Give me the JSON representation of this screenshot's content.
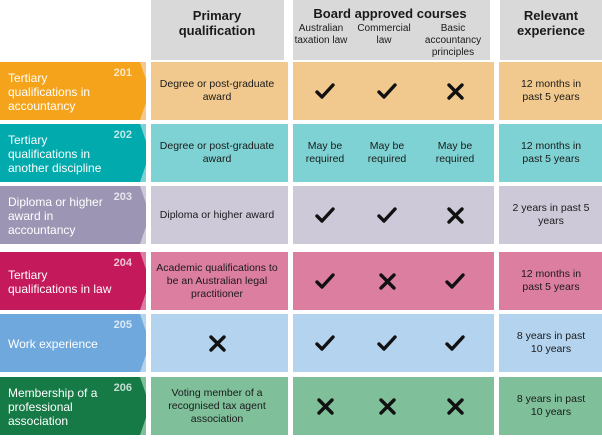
{
  "headers": {
    "primary": "Primary qualification",
    "board": "Board approved courses",
    "board_cols": [
      "Australian taxation law",
      "Commercial law",
      "Basic accountancy principles"
    ],
    "experience": "Relevant experience"
  },
  "rows": [
    {
      "num": "201",
      "label": "Tertiary qualifications in accountancy",
      "primary": "Degree or post-graduate award",
      "courses": [
        "check",
        "check",
        "cross"
      ],
      "experience": "12 months in past 5 years",
      "label_color": "#f5a31a",
      "row_color": "#f1c98e"
    },
    {
      "num": "202",
      "label": "Tertiary qualifications in another discipline",
      "primary": "Degree or post-graduate award",
      "courses": [
        "May be required",
        "May be required",
        "May be required"
      ],
      "experience": "12 months in past 5 years",
      "label_color": "#00aaad",
      "row_color": "#7fd2d3"
    },
    {
      "num": "203",
      "label": "Diploma or higher award in accountancy",
      "primary": "Diploma or higher award",
      "courses": [
        "check",
        "check",
        "cross"
      ],
      "experience": "2 years in past 5 years",
      "label_color": "#9c96b4",
      "row_color": "#cdc9d9"
    },
    {
      "num": "204",
      "label": "Tertiary qualifications in law",
      "primary": "Academic qualifications to be an Australian legal practitioner",
      "courses": [
        "check",
        "cross",
        "check"
      ],
      "experience": "12 months in past 5 years",
      "label_color": "#c4195a",
      "row_color": "#dc7ea0"
    },
    {
      "num": "205",
      "label": "Work experience",
      "primary": "cross",
      "courses": [
        "check",
        "check",
        "check"
      ],
      "experience": "8 years in past 10 years",
      "label_color": "#6ea8dc",
      "row_color": "#b3d3ee"
    },
    {
      "num": "206",
      "label": "Membership of a professional association",
      "primary": "Voting member of a recognised tax agent association",
      "courses": [
        "cross",
        "cross",
        "cross"
      ],
      "experience": "8 years in past 10 years",
      "label_color": "#157a45",
      "row_color": "#7fbf9a"
    }
  ]
}
